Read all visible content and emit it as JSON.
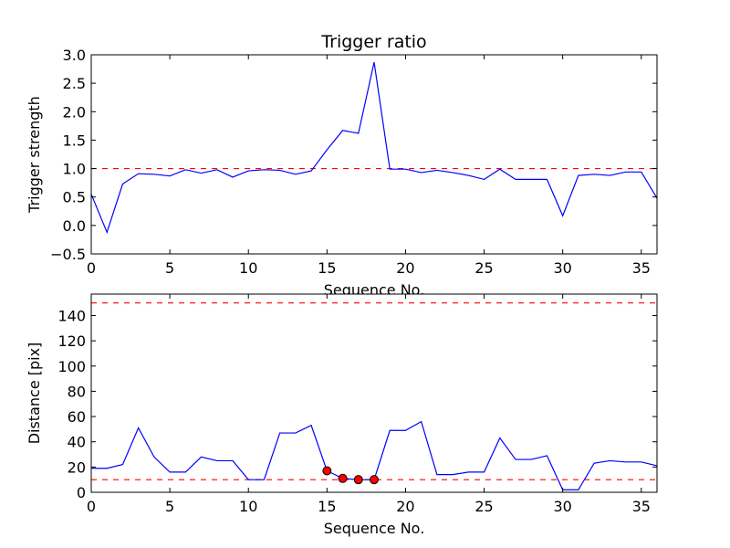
{
  "chart_data": [
    {
      "type": "line",
      "title": "Trigger ratio",
      "xlabel": "Sequence No.",
      "ylabel": "Trigger strength",
      "xlim": [
        0,
        36
      ],
      "ylim": [
        -0.5,
        3.0
      ],
      "xticks": [
        0,
        5,
        10,
        15,
        20,
        25,
        30,
        35
      ],
      "xtick_labels": [
        "0",
        "5",
        "10",
        "15",
        "20",
        "25",
        "30",
        "35"
      ],
      "yticks": [
        -0.5,
        0.0,
        0.5,
        1.0,
        1.5,
        2.0,
        2.5,
        3.0
      ],
      "ytick_labels": [
        "−0.5",
        "0.0",
        "0.5",
        "1.0",
        "1.5",
        "2.0",
        "2.5",
        "3.0"
      ],
      "grid": false,
      "series": [
        {
          "color": "#0000ff",
          "style": "solid",
          "x": [
            0,
            1,
            2,
            3,
            4,
            5,
            6,
            7,
            8,
            9,
            10,
            11,
            12,
            13,
            14,
            15,
            16,
            17,
            18,
            19,
            20,
            21,
            22,
            23,
            24,
            25,
            26,
            27,
            28,
            29,
            30,
            31,
            32,
            33,
            34,
            35,
            36
          ],
          "y": [
            0.55,
            -0.12,
            0.73,
            0.91,
            0.9,
            0.87,
            0.98,
            0.92,
            0.98,
            0.85,
            0.96,
            0.98,
            0.97,
            0.9,
            0.96,
            1.33,
            1.67,
            1.62,
            2.87,
            0.99,
            0.99,
            0.93,
            0.97,
            0.93,
            0.88,
            0.81,
            0.99,
            0.81,
            0.81,
            0.81,
            0.17,
            0.88,
            0.9,
            0.88,
            0.94,
            0.94,
            0.48
          ]
        }
      ],
      "reference_lines": [
        {
          "orientation": "horizontal",
          "y": 1.0,
          "color": "#ff0000",
          "style": "dashed"
        }
      ]
    },
    {
      "type": "line",
      "title": "",
      "xlabel": "Sequence No.",
      "ylabel": "Distance [pix]",
      "xlim": [
        0,
        36
      ],
      "ylim": [
        0,
        157
      ],
      "xticks": [
        0,
        5,
        10,
        15,
        20,
        25,
        30,
        35
      ],
      "xtick_labels": [
        "0",
        "5",
        "10",
        "15",
        "20",
        "25",
        "30",
        "35"
      ],
      "yticks": [
        0,
        20,
        40,
        60,
        80,
        100,
        120,
        140
      ],
      "ytick_labels": [
        "0",
        "20",
        "40",
        "60",
        "80",
        "100",
        "120",
        "140"
      ],
      "grid": false,
      "series": [
        {
          "color": "#0000ff",
          "style": "solid",
          "x": [
            0,
            1,
            2,
            3,
            4,
            5,
            6,
            7,
            8,
            9,
            10,
            11,
            12,
            13,
            14,
            15,
            16,
            17,
            18,
            19,
            20,
            21,
            22,
            23,
            24,
            25,
            26,
            27,
            28,
            29,
            30,
            31,
            32,
            33,
            34,
            35,
            36
          ],
          "y": [
            19,
            19,
            22,
            51,
            28,
            16,
            16,
            28,
            25,
            25,
            10,
            10,
            47,
            47,
            53,
            17,
            11,
            10,
            10,
            49,
            49,
            56,
            14,
            14,
            16,
            16,
            43,
            26,
            26,
            29,
            2,
            2,
            23,
            25,
            24,
            24,
            21
          ]
        }
      ],
      "markers": {
        "color": "#ff0000",
        "x": [
          15,
          16,
          17,
          18
        ],
        "y": [
          17,
          11,
          10,
          10
        ]
      },
      "reference_lines": [
        {
          "orientation": "horizontal",
          "y": 150,
          "color": "#ff0000",
          "style": "dashed"
        },
        {
          "orientation": "horizontal",
          "y": 10,
          "color": "#ff0000",
          "style": "dashed"
        }
      ]
    }
  ]
}
